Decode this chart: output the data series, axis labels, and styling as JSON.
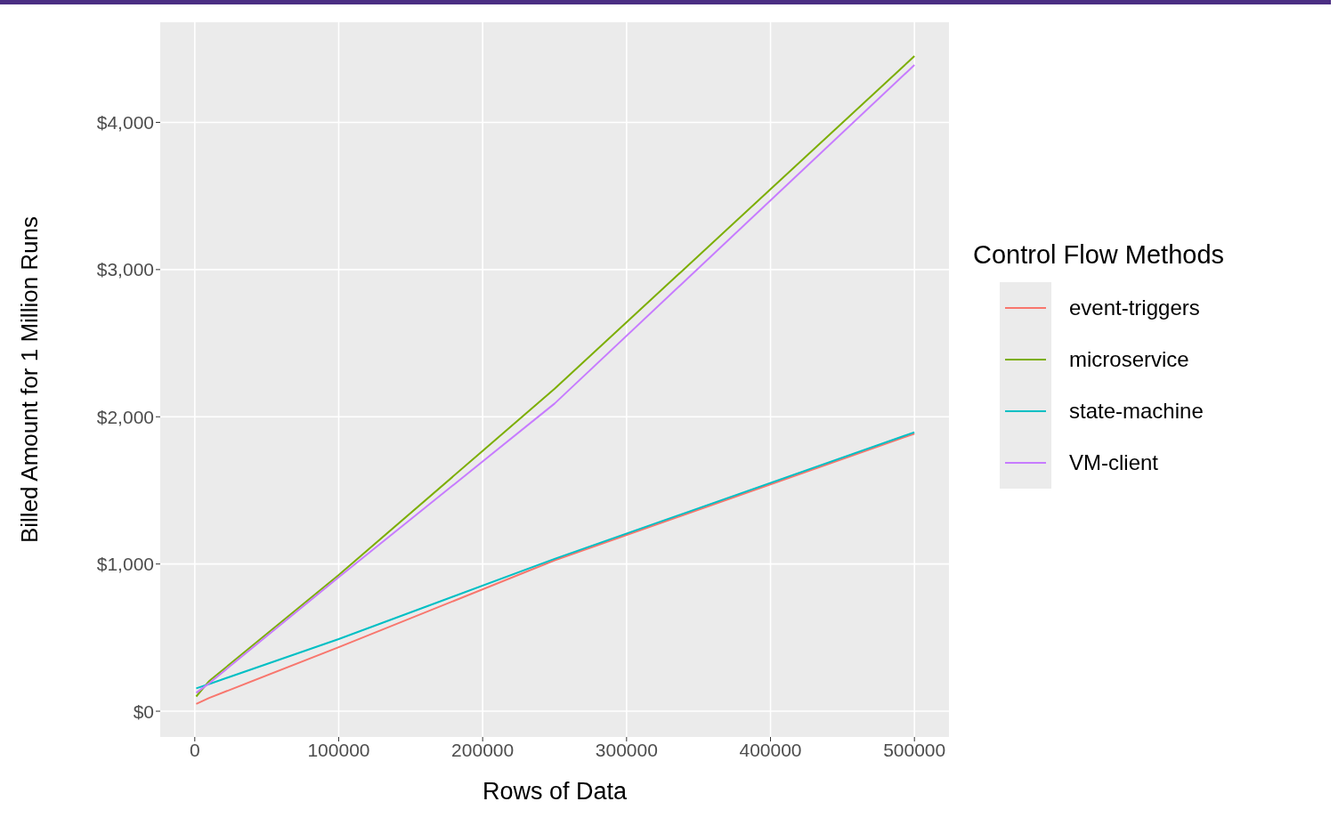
{
  "chart_data": {
    "type": "line",
    "xlabel": "Rows of Data",
    "ylabel": "Billed Amount for 1 Million Runs",
    "legend_title": "Control Flow Methods",
    "x": [
      1000,
      10000,
      100000,
      250000,
      500000
    ],
    "series": [
      {
        "name": "event-triggers",
        "color": "#f8766d",
        "values": [
          50,
          90,
          435,
          1025,
          1885
        ]
      },
      {
        "name": "microservice",
        "color": "#7cae00",
        "values": [
          100,
          205,
          925,
          2190,
          4450
        ]
      },
      {
        "name": "state-machine",
        "color": "#00bfc4",
        "values": [
          155,
          185,
          490,
          1035,
          1895
        ]
      },
      {
        "name": "VM-client",
        "color": "#c77cff",
        "values": [
          125,
          190,
          910,
          2090,
          4390
        ]
      }
    ],
    "xlim": [
      -24000,
      524000
    ],
    "xticks": [
      0,
      100000,
      200000,
      300000,
      400000,
      500000
    ],
    "ylim": [
      -175,
      4680
    ],
    "yticks": [
      {
        "value": 0,
        "label": "$0"
      },
      {
        "value": 1000,
        "label": "$1,000"
      },
      {
        "value": 2000,
        "label": "$2,000"
      },
      {
        "value": 3000,
        "label": "$3,000"
      },
      {
        "value": 4000,
        "label": "$4,000"
      }
    ],
    "grid": true,
    "legend": "right",
    "marker": "none",
    "line_style": "solid"
  }
}
